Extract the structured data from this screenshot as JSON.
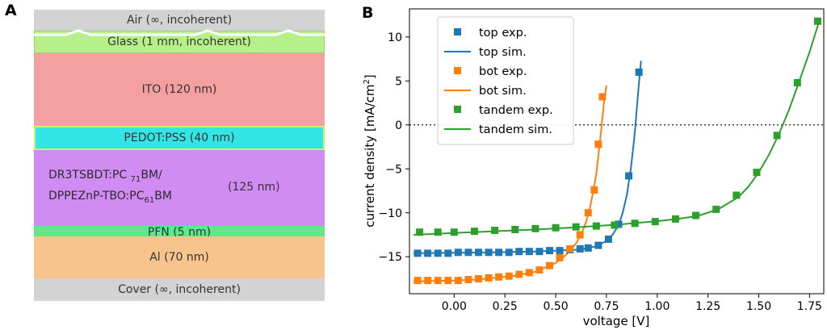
{
  "panel_a": {
    "letter": "A",
    "layers": {
      "air": "Air (∞, incoherent)",
      "glass": "Glass (1 mm, incoherent)",
      "ito": "ITO (120 nm)",
      "pedot": "PEDOT:PSS (40 nm)",
      "active_line1": "DR3TSBDT:PC",
      "active_sub1": "71",
      "active_line1_end": "BM/",
      "active_line2": "DPPEZnP-TBO:PC",
      "active_sub2": "61",
      "active_line2_end": "BM",
      "active_thickness": "(125 nm)",
      "pfn": "PFN (5 nm)",
      "al": "Al (70 nm)",
      "cover": "Cover (∞, incoherent)"
    },
    "colors": {
      "air": "#d3d3d3",
      "glass": "#b7f08a",
      "ito": "#f4a0a0",
      "pedot": "#33e6e6",
      "active": "#d08cf2",
      "pfn": "#5fea86",
      "al": "#f8c48e",
      "cover": "#d3d3d3"
    }
  },
  "chart_data": {
    "type": "scatter",
    "panel_letter": "B",
    "xlabel": "voltage [V]",
    "ylabel_main": "current density [mA/cm",
    "ylabel_sup": "2",
    "ylabel_end": "]",
    "xlim": [
      -0.22,
      1.82
    ],
    "ylim": [
      -19.2,
      13.2
    ],
    "xticks": [
      0.0,
      0.25,
      0.5,
      0.75,
      1.0,
      1.25,
      1.5,
      1.75
    ],
    "xtick_labels": [
      "0.00",
      "0.25",
      "0.50",
      "0.75",
      "1.00",
      "1.25",
      "1.50",
      "1.75"
    ],
    "yticks": [
      -15,
      -10,
      -5,
      0,
      5,
      10
    ],
    "ytick_labels": [
      "−15",
      "−10",
      "−5",
      "0",
      "5",
      "10"
    ],
    "zero_line": true,
    "legend_position": "top-left",
    "series": [
      {
        "name": "top exp.",
        "kind": "markers",
        "color": "#1f77b4",
        "x": [
          -0.18,
          -0.13,
          -0.08,
          -0.03,
          0.02,
          0.07,
          0.12,
          0.17,
          0.22,
          0.27,
          0.32,
          0.37,
          0.42,
          0.47,
          0.52,
          0.57,
          0.62,
          0.66,
          0.71,
          0.76,
          0.81,
          0.86,
          0.91
        ],
        "y": [
          -14.6,
          -14.6,
          -14.6,
          -14.6,
          -14.5,
          -14.5,
          -14.5,
          -14.5,
          -14.5,
          -14.5,
          -14.4,
          -14.4,
          -14.4,
          -14.3,
          -14.3,
          -14.2,
          -14.1,
          -14.0,
          -13.7,
          -13.0,
          -11.3,
          -5.8,
          6.0
        ]
      },
      {
        "name": "top sim.",
        "kind": "line",
        "color": "#1f77b4",
        "x": [
          -0.2,
          0.0,
          0.2,
          0.4,
          0.5,
          0.6,
          0.65,
          0.7,
          0.75,
          0.78,
          0.81,
          0.83,
          0.85,
          0.87,
          0.88,
          0.89,
          0.9,
          0.91,
          0.92
        ],
        "y": [
          -14.6,
          -14.55,
          -14.5,
          -14.4,
          -14.3,
          -14.2,
          -14.05,
          -13.8,
          -13.2,
          -12.5,
          -11.4,
          -10.0,
          -8.0,
          -5.0,
          -3.0,
          -0.8,
          2.0,
          4.8,
          7.3
        ]
      },
      {
        "name": "bot exp.",
        "kind": "markers",
        "color": "#ff7f0e",
        "x": [
          -0.18,
          -0.13,
          -0.08,
          -0.03,
          0.02,
          0.07,
          0.12,
          0.17,
          0.22,
          0.27,
          0.32,
          0.37,
          0.42,
          0.47,
          0.52,
          0.57,
          0.62,
          0.66,
          0.69,
          0.71,
          0.73
        ],
        "y": [
          -17.7,
          -17.7,
          -17.7,
          -17.7,
          -17.7,
          -17.6,
          -17.5,
          -17.4,
          -17.3,
          -17.2,
          -17.0,
          -16.8,
          -16.5,
          -16.0,
          -15.1,
          -14.1,
          -12.5,
          -10.0,
          -7.4,
          -2.2,
          3.2
        ]
      },
      {
        "name": "bot sim.",
        "kind": "line",
        "color": "#ff7f0e",
        "x": [
          -0.2,
          0.0,
          0.1,
          0.2,
          0.3,
          0.4,
          0.5,
          0.55,
          0.6,
          0.63,
          0.65,
          0.67,
          0.69,
          0.7,
          0.71,
          0.72,
          0.73,
          0.74,
          0.75
        ],
        "y": [
          -17.8,
          -17.7,
          -17.6,
          -17.4,
          -17.15,
          -16.7,
          -15.7,
          -14.8,
          -13.5,
          -12.2,
          -11.0,
          -9.3,
          -7.0,
          -5.5,
          -3.5,
          -1.5,
          0.8,
          3.0,
          4.5
        ]
      },
      {
        "name": "tandem exp.",
        "kind": "markers",
        "color": "#2ca02c",
        "x": [
          -0.17,
          -0.08,
          0.0,
          0.1,
          0.2,
          0.3,
          0.4,
          0.5,
          0.6,
          0.7,
          0.79,
          0.89,
          0.99,
          1.09,
          1.19,
          1.29,
          1.39,
          1.49,
          1.59,
          1.69,
          1.79
        ],
        "y": [
          -12.2,
          -12.2,
          -12.2,
          -12.1,
          -12.0,
          -11.9,
          -11.8,
          -11.7,
          -11.6,
          -11.5,
          -11.4,
          -11.2,
          -11.0,
          -10.7,
          -10.3,
          -9.6,
          -8.0,
          -5.4,
          -1.2,
          4.8,
          11.8
        ]
      },
      {
        "name": "tandem sim.",
        "kind": "line",
        "color": "#2ca02c",
        "x": [
          -0.2,
          0.0,
          0.2,
          0.4,
          0.6,
          0.8,
          0.9,
          1.0,
          1.1,
          1.2,
          1.3,
          1.4,
          1.45,
          1.5,
          1.55,
          1.6,
          1.65,
          1.7,
          1.75,
          1.8
        ],
        "y": [
          -12.5,
          -12.3,
          -12.1,
          -11.9,
          -11.65,
          -11.35,
          -11.15,
          -10.95,
          -10.7,
          -10.35,
          -9.6,
          -8.2,
          -7.0,
          -5.4,
          -3.4,
          -1.0,
          1.8,
          5.0,
          8.3,
          12.0
        ]
      }
    ]
  }
}
